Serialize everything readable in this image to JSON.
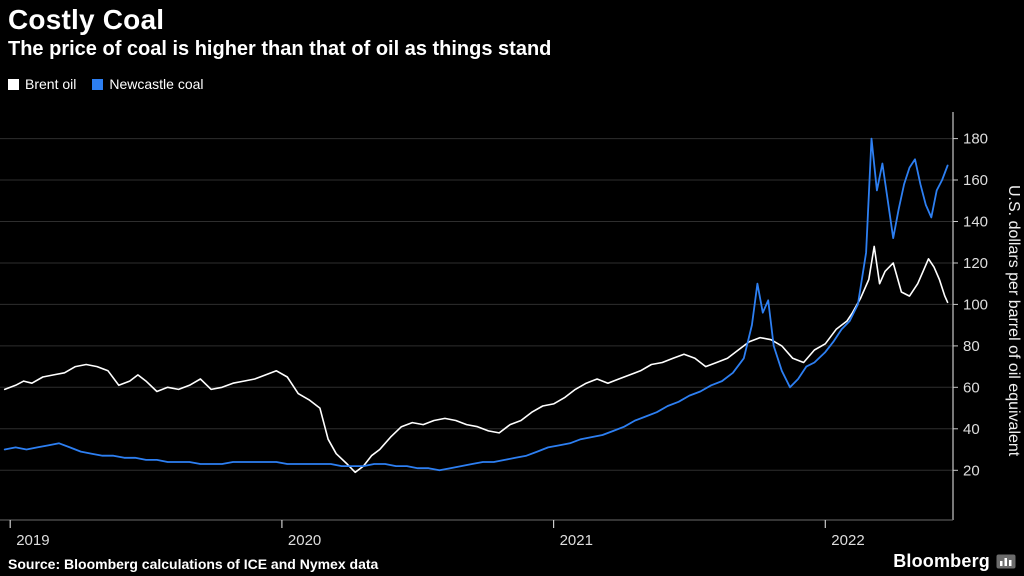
{
  "header": {
    "title": "Costly Coal",
    "subtitle": "The price of coal is higher than that of oil as things stand"
  },
  "legend": [
    {
      "label": "Brent oil",
      "color": "#ffffff"
    },
    {
      "label": "Newcastle coal",
      "color": "#2d7ff2"
    }
  ],
  "chart_data": {
    "type": "line",
    "title": "Costly Coal",
    "subtitle": "The price of coal is higher than that of oil as things stand",
    "xlabel": "",
    "ylabel": "U.S. dollars per barrel of oil equivalent",
    "grid": true,
    "legend_position": "top-left",
    "xlim": [
      2018.97,
      2022.47
    ],
    "ylim": [
      -4,
      188
    ],
    "y_ticks": [
      20,
      40,
      60,
      80,
      100,
      120,
      140,
      160,
      180
    ],
    "x_ticks": [
      {
        "value": 2019,
        "label": "2019"
      },
      {
        "value": 2020,
        "label": "2020"
      },
      {
        "value": 2021,
        "label": "2021"
      },
      {
        "value": 2022,
        "label": "2022"
      }
    ],
    "colors": {
      "background": "#000000",
      "grid": "#2e2e2e",
      "axis": "#c8c8c8",
      "tick_text": "#dedede"
    },
    "series": [
      {
        "name": "Brent oil",
        "color": "#ffffff",
        "width": 1.6,
        "x": [
          2018.98,
          2019.02,
          2019.05,
          2019.08,
          2019.12,
          2019.16,
          2019.2,
          2019.24,
          2019.28,
          2019.32,
          2019.36,
          2019.4,
          2019.44,
          2019.47,
          2019.5,
          2019.54,
          2019.58,
          2019.62,
          2019.66,
          2019.7,
          2019.74,
          2019.78,
          2019.82,
          2019.86,
          2019.9,
          2019.94,
          2019.98,
          2020.02,
          2020.06,
          2020.1,
          2020.14,
          2020.17,
          2020.2,
          2020.24,
          2020.27,
          2020.3,
          2020.33,
          2020.36,
          2020.4,
          2020.44,
          2020.48,
          2020.52,
          2020.56,
          2020.6,
          2020.64,
          2020.68,
          2020.72,
          2020.76,
          2020.8,
          2020.84,
          2020.88,
          2020.92,
          2020.96,
          2021.0,
          2021.04,
          2021.08,
          2021.12,
          2021.16,
          2021.2,
          2021.24,
          2021.28,
          2021.32,
          2021.36,
          2021.4,
          2021.44,
          2021.48,
          2021.52,
          2021.56,
          2021.6,
          2021.64,
          2021.68,
          2021.72,
          2021.76,
          2021.8,
          2021.84,
          2021.88,
          2021.92,
          2021.96,
          2022.0,
          2022.04,
          2022.08,
          2022.1,
          2022.13,
          2022.16,
          2022.18,
          2022.2,
          2022.22,
          2022.25,
          2022.28,
          2022.31,
          2022.34,
          2022.36,
          2022.38,
          2022.4,
          2022.42,
          2022.44,
          2022.45
        ],
        "y": [
          59,
          61,
          63,
          62,
          65,
          66,
          67,
          70,
          71,
          70,
          68,
          61,
          63,
          66,
          63,
          58,
          60,
          59,
          61,
          64,
          59,
          60,
          62,
          63,
          64,
          66,
          68,
          65,
          57,
          54,
          50,
          35,
          28,
          23,
          19,
          22,
          27,
          30,
          36,
          41,
          43,
          42,
          44,
          45,
          44,
          42,
          41,
          39,
          38,
          42,
          44,
          48,
          51,
          52,
          55,
          59,
          62,
          64,
          62,
          64,
          66,
          68,
          71,
          72,
          74,
          76,
          74,
          70,
          72,
          74,
          78,
          82,
          84,
          83,
          80,
          74,
          72,
          78,
          81,
          88,
          92,
          96,
          103,
          112,
          128,
          110,
          116,
          120,
          106,
          104,
          110,
          116,
          122,
          118,
          112,
          104,
          101
        ]
      },
      {
        "name": "Newcastle coal",
        "color": "#2d7ff2",
        "width": 1.8,
        "x": [
          2018.98,
          2019.02,
          2019.06,
          2019.1,
          2019.14,
          2019.18,
          2019.22,
          2019.26,
          2019.3,
          2019.34,
          2019.38,
          2019.42,
          2019.46,
          2019.5,
          2019.54,
          2019.58,
          2019.62,
          2019.66,
          2019.7,
          2019.74,
          2019.78,
          2019.82,
          2019.86,
          2019.9,
          2019.94,
          2019.98,
          2020.02,
          2020.06,
          2020.1,
          2020.14,
          2020.18,
          2020.22,
          2020.26,
          2020.3,
          2020.34,
          2020.38,
          2020.42,
          2020.46,
          2020.5,
          2020.54,
          2020.58,
          2020.62,
          2020.66,
          2020.7,
          2020.74,
          2020.78,
          2020.82,
          2020.86,
          2020.9,
          2020.94,
          2020.98,
          2021.02,
          2021.06,
          2021.1,
          2021.14,
          2021.18,
          2021.22,
          2021.26,
          2021.3,
          2021.34,
          2021.38,
          2021.42,
          2021.46,
          2021.5,
          2021.54,
          2021.58,
          2021.62,
          2021.66,
          2021.7,
          2021.73,
          2021.75,
          2021.77,
          2021.79,
          2021.81,
          2021.84,
          2021.87,
          2021.9,
          2021.93,
          2021.96,
          2022.0,
          2022.03,
          2022.06,
          2022.09,
          2022.12,
          2022.15,
          2022.17,
          2022.19,
          2022.21,
          2022.23,
          2022.25,
          2022.27,
          2022.29,
          2022.31,
          2022.33,
          2022.35,
          2022.37,
          2022.39,
          2022.41,
          2022.43,
          2022.45
        ],
        "y": [
          30,
          31,
          30,
          31,
          32,
          33,
          31,
          29,
          28,
          27,
          27,
          26,
          26,
          25,
          25,
          24,
          24,
          24,
          23,
          23,
          23,
          24,
          24,
          24,
          24,
          24,
          23,
          23,
          23,
          23,
          23,
          22,
          22,
          22,
          23,
          23,
          22,
          22,
          21,
          21,
          20,
          21,
          22,
          23,
          24,
          24,
          25,
          26,
          27,
          29,
          31,
          32,
          33,
          35,
          36,
          37,
          39,
          41,
          44,
          46,
          48,
          51,
          53,
          56,
          58,
          61,
          63,
          67,
          74,
          90,
          110,
          96,
          102,
          80,
          68,
          60,
          64,
          70,
          72,
          77,
          82,
          88,
          92,
          100,
          125,
          180,
          155,
          168,
          150,
          132,
          146,
          158,
          166,
          170,
          158,
          148,
          142,
          155,
          160,
          167
        ]
      }
    ]
  },
  "footer": {
    "source": "Source: Bloomberg calculations of ICE and Nymex data",
    "brand": "Bloomberg"
  }
}
